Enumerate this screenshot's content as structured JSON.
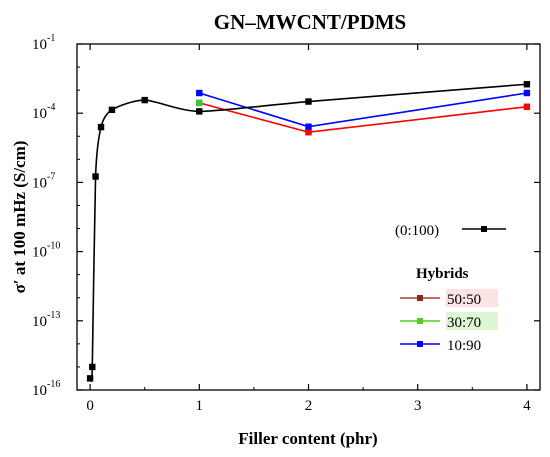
{
  "chart_data": {
    "type": "line",
    "title": "GN–MWCNT/PDMS",
    "xlabel": "Filler content (phr)",
    "ylabel": "σ′ at 100 mHz (S/cm)",
    "xlim": [
      -0.12,
      4.12
    ],
    "ylim_log10": [
      -16,
      -1
    ],
    "x_categories": [
      "0",
      "1",
      "2",
      "3",
      "4"
    ],
    "y_ticks": [
      {
        "exp": -16,
        "label": "10",
        "sup": "-16"
      },
      {
        "exp": -13,
        "label": "10",
        "sup": "-13"
      },
      {
        "exp": -10,
        "label": "10",
        "sup": "-10"
      },
      {
        "exp": -7,
        "label": "10",
        "sup": "-7"
      },
      {
        "exp": -4,
        "label": "10",
        "sup": "-4"
      },
      {
        "exp": -1,
        "label": "10",
        "sup": "-1"
      }
    ],
    "y_scale": "log",
    "grid": false,
    "series": [
      {
        "name": "(0:100)",
        "color": "#000000",
        "marker": "square",
        "smooth": true,
        "points": [
          {
            "x": 0.0,
            "y": 3.2e-16
          },
          {
            "x": 0.02,
            "y": 1e-15
          },
          {
            "x": 0.05,
            "y": 1.8e-07
          },
          {
            "x": 0.1,
            "y": 2.5e-05
          },
          {
            "x": 0.2,
            "y": 0.00014
          },
          {
            "x": 0.5,
            "y": 0.00037
          },
          {
            "x": 1.0,
            "y": 0.00012
          },
          {
            "x": 2.0,
            "y": 0.00032
          },
          {
            "x": 4.0,
            "y": 0.0018
          }
        ]
      },
      {
        "name": "50:50",
        "color": "#ff0000",
        "marker": "square",
        "smooth": false,
        "points": [
          {
            "x": 1.0,
            "y": 0.00028
          },
          {
            "x": 2.0,
            "y": 1.5e-05
          },
          {
            "x": 4.0,
            "y": 0.00019
          }
        ]
      },
      {
        "name": "30:70",
        "color": "#33cc33",
        "marker": "square",
        "smooth": false,
        "points": [
          {
            "x": 1.0,
            "y": 0.00028
          }
        ]
      },
      {
        "name": "10:90",
        "color": "#0000ff",
        "marker": "square",
        "smooth": false,
        "points": [
          {
            "x": 1.0,
            "y": 0.00075
          },
          {
            "x": 2.0,
            "y": 2.6e-05
          },
          {
            "x": 4.0,
            "y": 0.00075
          }
        ]
      }
    ],
    "legend": {
      "placement": "right",
      "group_title": "Hybrids",
      "entries": [
        {
          "label": "(0:100)",
          "color": "#000000",
          "label_bg": "#ffffff"
        },
        {
          "label": "50:50",
          "color": "#b03a2e",
          "label_bg": "#fde3e3"
        },
        {
          "label": "30:70",
          "color": "#55cc22",
          "label_bg": "#ddf7d4"
        },
        {
          "label": "10:90",
          "color": "#0000ff",
          "label_bg": "#ffffff"
        }
      ]
    }
  }
}
